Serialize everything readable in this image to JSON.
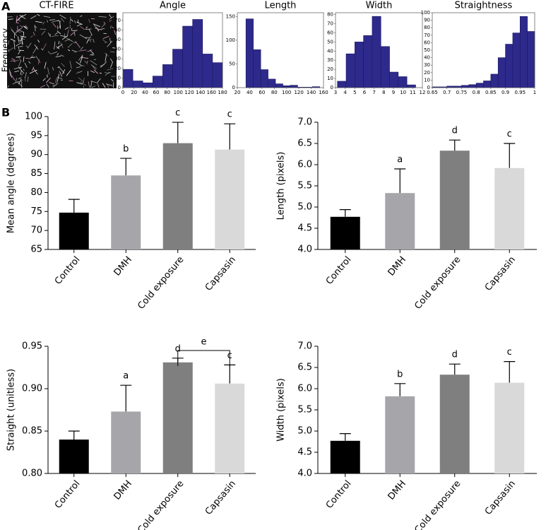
{
  "panel_labels": [
    "A",
    "B"
  ],
  "image_title": "CT-FIRE",
  "chart_data": [
    {
      "type": "histogram",
      "title": "Angle",
      "ylabel": "Frequency",
      "color": "#2e2a8c",
      "bins": [
        0,
        18,
        36,
        54,
        72,
        90,
        108,
        126,
        144,
        162,
        180
      ],
      "values": [
        19,
        7,
        5,
        12,
        24,
        40,
        64,
        71,
        35,
        26
      ],
      "xlim": [
        0,
        180
      ],
      "xticks": [
        0,
        20,
        40,
        60,
        80,
        100,
        120,
        140,
        160,
        180
      ],
      "ylim": [
        0,
        78
      ],
      "yticks": [
        0,
        10,
        20,
        30,
        40,
        50,
        60,
        70
      ]
    },
    {
      "type": "histogram",
      "title": "Length",
      "color": "#2e2a8c",
      "bins": [
        34,
        46,
        58,
        70,
        82,
        94,
        106,
        118,
        130,
        142,
        154
      ],
      "values": [
        145,
        80,
        38,
        18,
        8,
        4,
        5,
        1,
        1,
        2
      ],
      "xlim": [
        20,
        160
      ],
      "xticks": [
        20,
        40,
        60,
        80,
        100,
        120,
        140,
        160
      ],
      "ylim": [
        0,
        158
      ],
      "yticks": [
        0,
        50,
        100,
        150
      ]
    },
    {
      "type": "histogram",
      "title": "Width",
      "color": "#2e2a8c",
      "bins": [
        3.2,
        4.1,
        5.0,
        5.9,
        6.8,
        7.7,
        8.6,
        9.5,
        10.4,
        11.3
      ],
      "values": [
        7,
        37,
        50,
        57,
        78,
        45,
        17,
        12,
        3
      ],
      "xlim": [
        3,
        12
      ],
      "xticks": [
        3,
        4,
        5,
        6,
        7,
        8,
        9,
        10,
        11,
        12
      ],
      "ylim": [
        0,
        82
      ],
      "yticks": [
        0,
        10,
        20,
        30,
        40,
        50,
        60,
        70,
        80
      ]
    },
    {
      "type": "histogram",
      "title": "Straightness",
      "color": "#2e2a8c",
      "bins": [
        0.65,
        0.675,
        0.7,
        0.725,
        0.75,
        0.775,
        0.8,
        0.825,
        0.85,
        0.875,
        0.9,
        0.925,
        0.95,
        0.975,
        1.0
      ],
      "values": [
        1,
        1,
        2,
        2,
        3,
        4,
        6,
        9,
        18,
        40,
        58,
        73,
        95,
        75
      ],
      "xlim": [
        0.65,
        1
      ],
      "xticks": [
        0.65,
        0.7,
        0.75,
        0.8,
        0.85,
        0.9,
        0.95,
        1
      ],
      "ylim": [
        0,
        100
      ],
      "yticks": [
        0,
        10,
        20,
        30,
        40,
        50,
        60,
        70,
        80,
        90,
        100
      ]
    },
    {
      "type": "bar",
      "ylabel": "Mean angle (degrees)",
      "categories": [
        "Control",
        "DMH",
        "Cold exposure",
        "Capsasin"
      ],
      "values": [
        74.7,
        84.5,
        93.0,
        91.3
      ],
      "errors": [
        3.5,
        4.5,
        5.5,
        6.8
      ],
      "colors": [
        "#000000",
        "#a6a6aa",
        "#7f7f7f",
        "#d9d9d9"
      ],
      "annotations": [
        null,
        "b",
        "c",
        "c"
      ],
      "ylim": [
        65,
        100
      ],
      "yticks": [
        65,
        70,
        75,
        80,
        85,
        90,
        95,
        100
      ]
    },
    {
      "type": "bar",
      "ylabel": "Length (pixels)",
      "categories": [
        "Control",
        "DMH",
        "Cold exposure",
        "Capsasin"
      ],
      "values": [
        4.77,
        5.33,
        6.33,
        5.92
      ],
      "errors": [
        0.17,
        0.57,
        0.25,
        0.58
      ],
      "colors": [
        "#000000",
        "#a6a6aa",
        "#7f7f7f",
        "#d9d9d9"
      ],
      "annotations": [
        null,
        "a",
        "d",
        "c"
      ],
      "ylim": [
        4,
        7
      ],
      "yticks": [
        {
          "value": 4,
          "label": "4.0"
        },
        4.5,
        {
          "value": 5,
          "label": "5.0"
        },
        5.5,
        {
          "value": 6,
          "label": "6.0"
        },
        6.5,
        {
          "value": 7,
          "label": "7.0"
        }
      ]
    },
    {
      "type": "bar",
      "ylabel": "Straight (unitless)",
      "categories": [
        "Control",
        "DMH",
        "Cold exposure",
        "Capsasin"
      ],
      "values": [
        0.84,
        0.873,
        0.931,
        0.906
      ],
      "errors": [
        0.01,
        0.031,
        0.005,
        0.022
      ],
      "colors": [
        "#000000",
        "#a6a6aa",
        "#7f7f7f",
        "#d9d9d9"
      ],
      "annotations": [
        null,
        "a",
        "d",
        "c"
      ],
      "bracket_label": "e",
      "ylim": [
        0.8,
        0.95
      ],
      "yticks": [
        {
          "value": 0.8,
          "label": "0.80"
        },
        0.85,
        {
          "value": 0.9,
          "label": "0.90"
        },
        0.95
      ]
    },
    {
      "type": "bar",
      "ylabel": "Width (pixels)",
      "categories": [
        "Control",
        "DMH",
        "Cold exposure",
        "Capsasin"
      ],
      "values": [
        4.77,
        5.82,
        6.33,
        6.14
      ],
      "errors": [
        0.17,
        0.3,
        0.25,
        0.5
      ],
      "colors": [
        "#000000",
        "#a6a6aa",
        "#7f7f7f",
        "#d9d9d9"
      ],
      "annotations": [
        null,
        "b",
        "d",
        "c"
      ],
      "ylim": [
        4,
        7
      ],
      "yticks": [
        {
          "value": 4,
          "label": "4.0"
        },
        4.5,
        {
          "value": 5,
          "label": "5.0"
        },
        5.5,
        {
          "value": 6,
          "label": "6.0"
        },
        6.5,
        {
          "value": 7,
          "label": "7.0"
        }
      ]
    }
  ]
}
